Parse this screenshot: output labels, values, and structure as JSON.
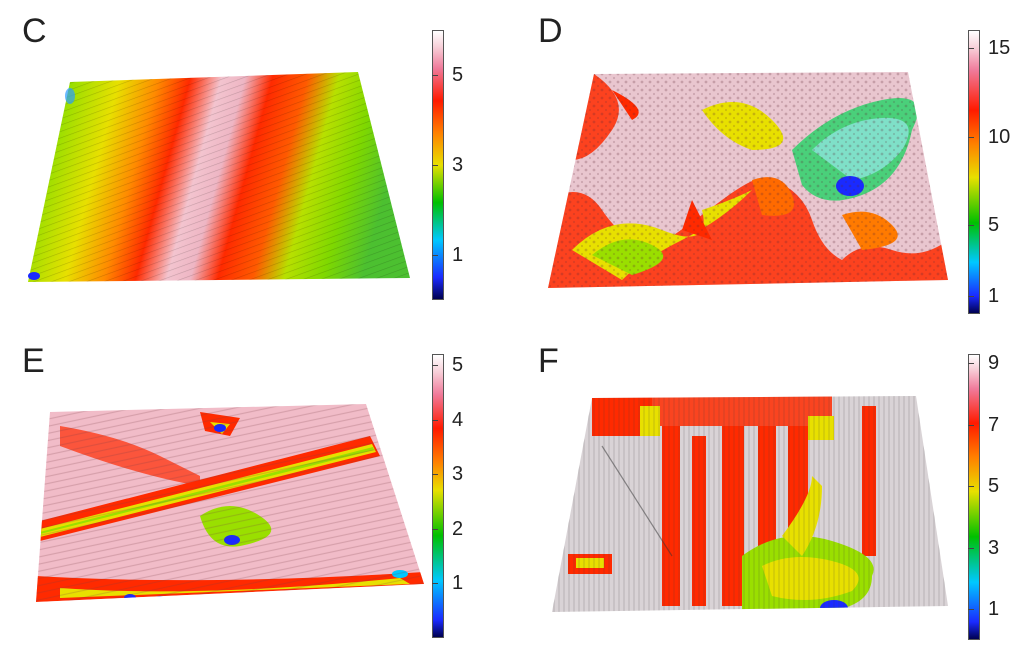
{
  "panels": [
    {
      "id": "C",
      "letter": "C",
      "colorbar": {
        "min": 0,
        "max": 6,
        "ticks": [
          1,
          3,
          5
        ]
      },
      "dominant_colors": [
        "#2e8b3a",
        "#e8e000",
        "#ff2a00",
        "#f0b0c0"
      ]
    },
    {
      "id": "D",
      "letter": "D",
      "colorbar": {
        "min": 0,
        "max": 16,
        "ticks": [
          1,
          5,
          10,
          15
        ]
      },
      "dominant_colors": [
        "#e8c0cc",
        "#ff2a00",
        "#e8e000",
        "#2b50ff"
      ]
    },
    {
      "id": "E",
      "letter": "E",
      "colorbar": {
        "min": 0,
        "max": 5.2,
        "ticks": [
          1,
          2,
          3,
          4,
          5
        ]
      },
      "dominant_colors": [
        "#f0b0c0",
        "#ff2a00",
        "#e8e000",
        "#1a2aff"
      ]
    },
    {
      "id": "F",
      "letter": "F",
      "colorbar": {
        "min": 0,
        "max": 9.3,
        "ticks": [
          1,
          3,
          5,
          7,
          9
        ]
      },
      "dominant_colors": [
        "#d8d0d4",
        "#ff2a00",
        "#00c000",
        "#1a2aff"
      ]
    }
  ],
  "colormap": [
    "#000050",
    "#1a2aff",
    "#00c8ff",
    "#00c000",
    "#e8e000",
    "#ff8000",
    "#ff1a00",
    "#f07a9a",
    "#f7cfd8",
    "#ffffff"
  ]
}
